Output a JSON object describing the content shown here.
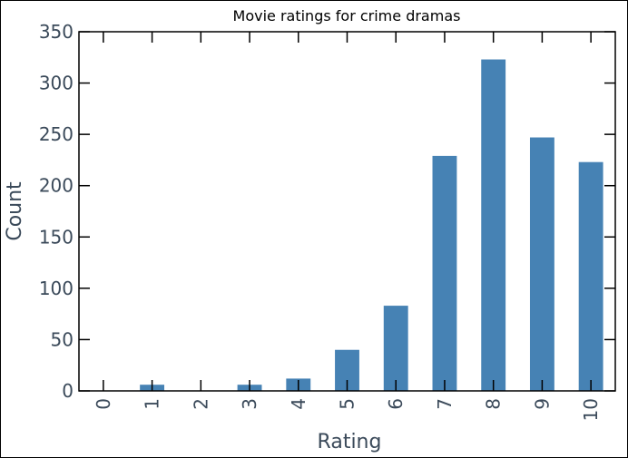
{
  "chart_data": {
    "type": "bar",
    "title": "Movie ratings for crime dramas",
    "xlabel": "Rating",
    "ylabel": "Count",
    "categories": [
      "0",
      "1",
      "2",
      "3",
      "4",
      "5",
      "6",
      "7",
      "8",
      "9",
      "10"
    ],
    "values": [
      0,
      6,
      0,
      6,
      12,
      40,
      83,
      229,
      323,
      247,
      223
    ],
    "ylim": [
      0,
      350
    ],
    "yticks": [
      "0",
      "50",
      "100",
      "150",
      "200",
      "250",
      "300",
      "350"
    ],
    "bar_color": "#4682b4",
    "grid": false,
    "legend": "none"
  }
}
